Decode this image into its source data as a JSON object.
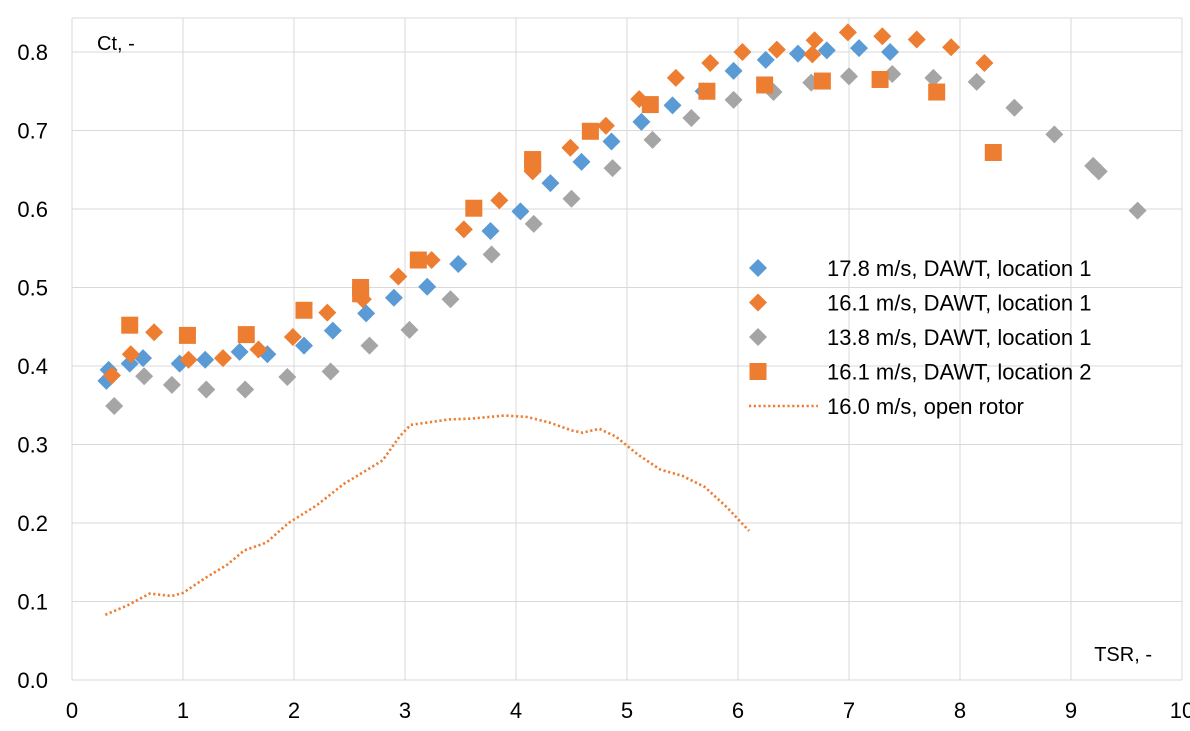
{
  "chart_data": {
    "type": "scatter",
    "title": "",
    "xlabel": "TSR, -",
    "ylabel": "Ct, -",
    "xlim": [
      0,
      10
    ],
    "ylim": [
      0,
      0.85
    ],
    "x_ticks": [
      "0",
      "1",
      "2",
      "3",
      "4",
      "5",
      "6",
      "7",
      "8",
      "9",
      "10"
    ],
    "y_ticks": [
      "0.0",
      "0.1",
      "0.2",
      "0.3",
      "0.4",
      "0.5",
      "0.6",
      "0.7",
      "0.8"
    ],
    "grid": true,
    "legend_position": "right",
    "series": [
      {
        "name": "17.8 m/s, DAWT, location 1",
        "marker": "diamond",
        "color": "#5B9BD5",
        "points": [
          [
            0.31,
            0.381
          ],
          [
            0.33,
            0.395
          ],
          [
            0.52,
            0.403
          ],
          [
            0.64,
            0.41
          ],
          [
            0.97,
            0.403
          ],
          [
            1.2,
            0.408
          ],
          [
            1.51,
            0.418
          ],
          [
            1.76,
            0.415
          ],
          [
            2.09,
            0.426
          ],
          [
            2.35,
            0.445
          ],
          [
            2.65,
            0.467
          ],
          [
            2.9,
            0.487
          ],
          [
            3.2,
            0.501
          ],
          [
            3.48,
            0.53
          ],
          [
            3.77,
            0.572
          ],
          [
            4.04,
            0.597
          ],
          [
            4.31,
            0.633
          ],
          [
            4.59,
            0.66
          ],
          [
            4.86,
            0.686
          ],
          [
            5.13,
            0.711
          ],
          [
            5.41,
            0.732
          ],
          [
            5.69,
            0.75
          ],
          [
            5.96,
            0.776
          ],
          [
            6.25,
            0.79
          ],
          [
            6.54,
            0.798
          ],
          [
            6.8,
            0.802
          ],
          [
            7.09,
            0.805
          ],
          [
            7.37,
            0.8
          ]
        ]
      },
      {
        "name": "16.1 m/s, DAWT, location 1",
        "marker": "diamond",
        "color": "#ED7D31",
        "points": [
          [
            0.36,
            0.388
          ],
          [
            0.53,
            0.415
          ],
          [
            0.74,
            0.443
          ],
          [
            1.05,
            0.408
          ],
          [
            1.36,
            0.41
          ],
          [
            1.68,
            0.421
          ],
          [
            1.99,
            0.437
          ],
          [
            2.3,
            0.468
          ],
          [
            2.62,
            0.485
          ],
          [
            2.94,
            0.514
          ],
          [
            3.24,
            0.535
          ],
          [
            3.53,
            0.574
          ],
          [
            3.85,
            0.611
          ],
          [
            4.15,
            0.648
          ],
          [
            4.49,
            0.678
          ],
          [
            4.81,
            0.706
          ],
          [
            5.11,
            0.74
          ],
          [
            5.44,
            0.767
          ],
          [
            5.75,
            0.786
          ],
          [
            6.04,
            0.8
          ],
          [
            6.35,
            0.803
          ],
          [
            6.69,
            0.815
          ],
          [
            6.99,
            0.825
          ],
          [
            7.3,
            0.82
          ],
          [
            7.61,
            0.816
          ],
          [
            7.92,
            0.806
          ],
          [
            8.22,
            0.786
          ],
          [
            6.67,
            0.797
          ]
        ]
      },
      {
        "name": "13.8 m/s, DAWT, location 1",
        "marker": "diamond",
        "color": "#A5A5A5",
        "points": [
          [
            0.38,
            0.349
          ],
          [
            0.65,
            0.387
          ],
          [
            0.9,
            0.376
          ],
          [
            1.21,
            0.37
          ],
          [
            1.56,
            0.37
          ],
          [
            1.94,
            0.386
          ],
          [
            2.33,
            0.393
          ],
          [
            2.68,
            0.426
          ],
          [
            3.04,
            0.446
          ],
          [
            3.41,
            0.485
          ],
          [
            3.78,
            0.542
          ],
          [
            4.16,
            0.581
          ],
          [
            4.5,
            0.613
          ],
          [
            4.87,
            0.652
          ],
          [
            5.23,
            0.688
          ],
          [
            5.58,
            0.716
          ],
          [
            5.96,
            0.739
          ],
          [
            6.32,
            0.749
          ],
          [
            6.66,
            0.761
          ],
          [
            7.0,
            0.769
          ],
          [
            7.39,
            0.772
          ],
          [
            7.76,
            0.767
          ],
          [
            8.15,
            0.762
          ],
          [
            8.49,
            0.729
          ],
          [
            8.85,
            0.695
          ],
          [
            9.2,
            0.655
          ],
          [
            9.25,
            0.648
          ],
          [
            9.6,
            0.598
          ]
        ]
      },
      {
        "name": "16.1 m/s, DAWT, location 2",
        "marker": "square",
        "color": "#ED7D31",
        "points": [
          [
            0.52,
            0.452
          ],
          [
            1.04,
            0.439
          ],
          [
            1.57,
            0.44
          ],
          [
            2.09,
            0.471
          ],
          [
            2.6,
            0.5
          ],
          [
            2.6,
            0.492
          ],
          [
            3.12,
            0.535
          ],
          [
            3.62,
            0.601
          ],
          [
            4.15,
            0.663
          ],
          [
            4.15,
            0.659
          ],
          [
            4.67,
            0.699
          ],
          [
            5.21,
            0.733
          ],
          [
            5.72,
            0.75
          ],
          [
            6.24,
            0.758
          ],
          [
            6.76,
            0.763
          ],
          [
            7.28,
            0.765
          ],
          [
            7.79,
            0.749
          ],
          [
            8.3,
            0.672
          ]
        ]
      },
      {
        "name": "16.0 m/s, open rotor",
        "marker": "dotted-line",
        "color": "#ED7D31",
        "points": [
          [
            0.3,
            0.083
          ],
          [
            0.5,
            0.095
          ],
          [
            0.7,
            0.11
          ],
          [
            0.9,
            0.107
          ],
          [
            1.0,
            0.111
          ],
          [
            1.2,
            0.13
          ],
          [
            1.4,
            0.147
          ],
          [
            1.55,
            0.165
          ],
          [
            1.75,
            0.175
          ],
          [
            1.95,
            0.2
          ],
          [
            2.2,
            0.222
          ],
          [
            2.45,
            0.25
          ],
          [
            2.65,
            0.267
          ],
          [
            2.8,
            0.28
          ],
          [
            2.95,
            0.31
          ],
          [
            3.05,
            0.325
          ],
          [
            3.4,
            0.332
          ],
          [
            3.6,
            0.333
          ],
          [
            3.9,
            0.337
          ],
          [
            4.1,
            0.335
          ],
          [
            4.3,
            0.328
          ],
          [
            4.5,
            0.318
          ],
          [
            4.6,
            0.315
          ],
          [
            4.75,
            0.32
          ],
          [
            4.9,
            0.31
          ],
          [
            5.1,
            0.287
          ],
          [
            5.3,
            0.268
          ],
          [
            5.5,
            0.26
          ],
          [
            5.7,
            0.246
          ],
          [
            5.9,
            0.22
          ],
          [
            6.1,
            0.19
          ]
        ]
      }
    ]
  }
}
